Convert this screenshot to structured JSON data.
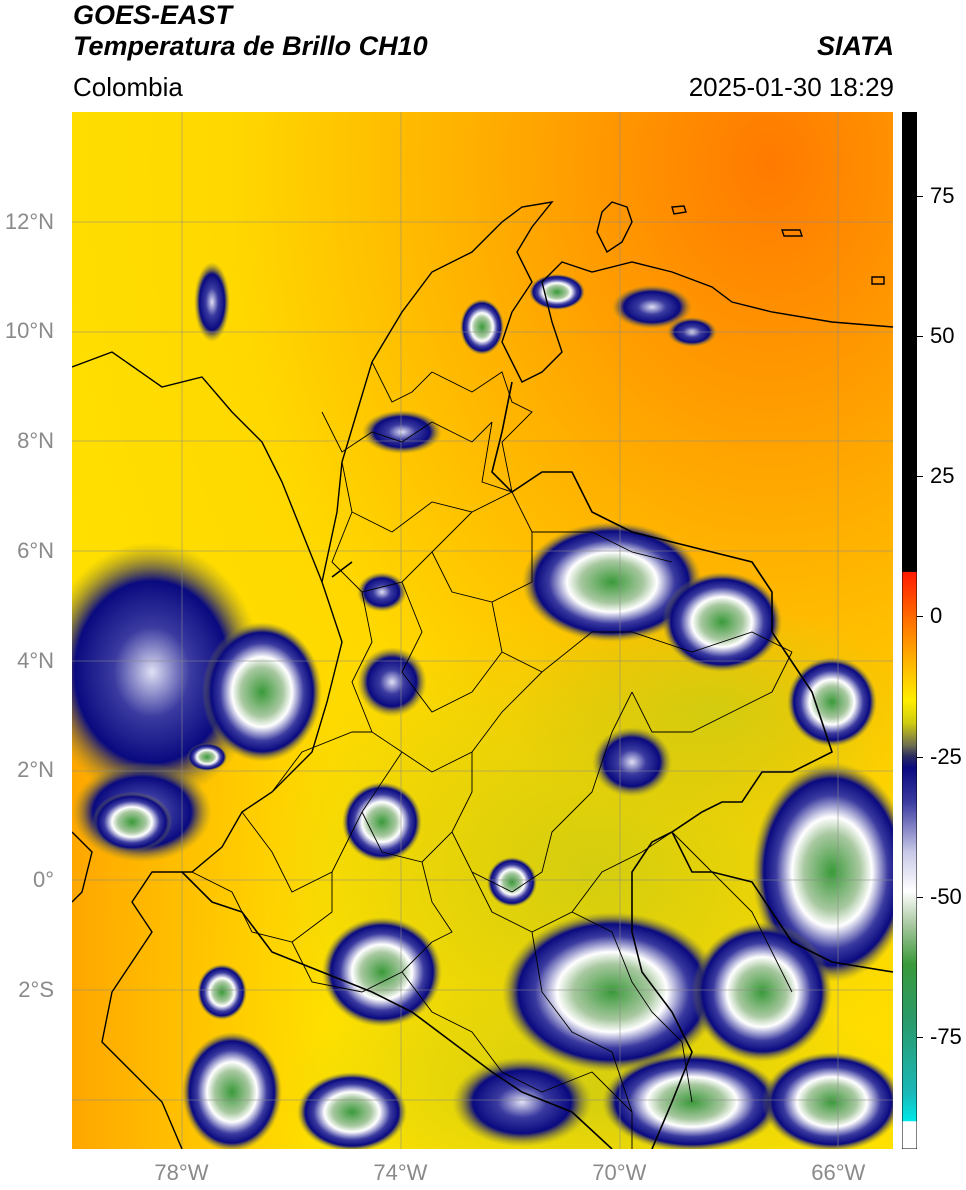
{
  "header": {
    "satellite": "GOES-EAST",
    "product": "Temperatura de Brillo CH10",
    "source": "SIATA",
    "region": "Colombia",
    "datetime": "2025-01-30 18:29"
  },
  "map": {
    "lat_labels": [
      {
        "text": "12°N",
        "value": 12
      },
      {
        "text": "10°N",
        "value": 10
      },
      {
        "text": "8°N",
        "value": 8
      },
      {
        "text": "6°N",
        "value": 6
      },
      {
        "text": "4°N",
        "value": 4
      },
      {
        "text": "2°N",
        "value": 2
      },
      {
        "text": "0°",
        "value": 0
      },
      {
        "text": "2°S",
        "value": -2
      }
    ],
    "lon_labels": [
      {
        "text": "78°W",
        "value": -78
      },
      {
        "text": "74°W",
        "value": -74
      },
      {
        "text": "70°W",
        "value": -70
      },
      {
        "text": "66°W",
        "value": -66
      }
    ],
    "extent": {
      "lon_min": -80,
      "lon_max": -65,
      "lat_min": -4.9,
      "lat_max": 14
    }
  },
  "colorbar": {
    "range": [
      -95,
      90
    ],
    "ticks": [
      75,
      50,
      25,
      0,
      -25,
      -50,
      -75
    ],
    "stops": [
      {
        "value": 90,
        "color": "#000000"
      },
      {
        "value": 8,
        "color": "#000000"
      },
      {
        "value": 7.9,
        "color": "#ff1a00"
      },
      {
        "value": 0,
        "color": "#ff6a00"
      },
      {
        "value": -8,
        "color": "#ffb300"
      },
      {
        "value": -15,
        "color": "#ffee00"
      },
      {
        "value": -19,
        "color": "#cfcc10"
      },
      {
        "value": -23,
        "color": "#6e6e50"
      },
      {
        "value": -25,
        "color": "#2a2a60"
      },
      {
        "value": -27,
        "color": "#0a0a80"
      },
      {
        "value": -33,
        "color": "#3a3aa0"
      },
      {
        "value": -42,
        "color": "#c8c8e8"
      },
      {
        "value": -49,
        "color": "#ffffff"
      },
      {
        "value": -55,
        "color": "#a8c8a0"
      },
      {
        "value": -62,
        "color": "#3a9a3a"
      },
      {
        "value": -72,
        "color": "#2a9a6a"
      },
      {
        "value": -85,
        "color": "#1ab8b8"
      },
      {
        "value": -90,
        "color": "#00e8e8"
      },
      {
        "value": -90.1,
        "color": "#ffffff"
      },
      {
        "value": -95,
        "color": "#ffffff"
      }
    ]
  }
}
